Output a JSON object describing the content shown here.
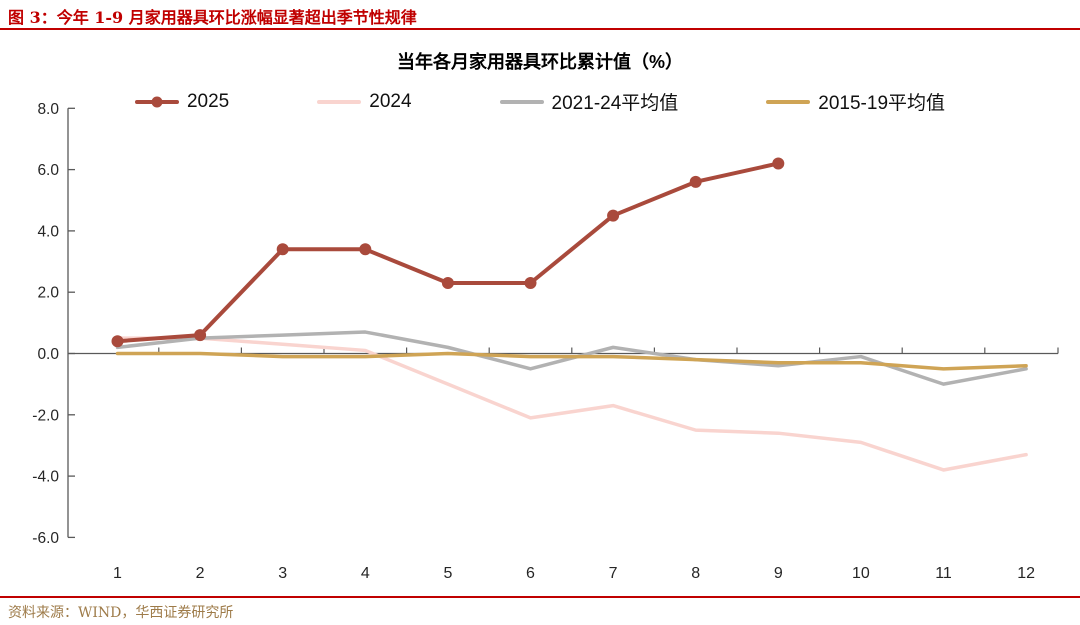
{
  "figure": {
    "caption": "图 3：今年 1-9 月家用器具环比涨幅显著超出季节性规律",
    "source": "资料来源：WIND，华西证券研究所"
  },
  "chart_data": {
    "type": "line",
    "title": "当年各月家用器具环比累计值（%）",
    "xlabel": "",
    "ylabel": "",
    "x_categories": [
      "1",
      "2",
      "3",
      "4",
      "5",
      "6",
      "7",
      "8",
      "9",
      "10",
      "11",
      "12"
    ],
    "ylim": [
      -6.0,
      8.0
    ],
    "yticks": [
      8.0,
      6.0,
      4.0,
      2.0,
      0.0,
      -2.0,
      -4.0,
      -6.0
    ],
    "ytick_labels": [
      "8.0",
      "6.0",
      "4.0",
      "2.0",
      "0.0",
      "-2.0",
      "-4.0",
      "-6.0"
    ],
    "grid": false,
    "legend_position": "top",
    "series": [
      {
        "name": "2025",
        "color": "#a94a3c",
        "marker": "circle",
        "values": [
          0.4,
          0.6,
          3.4,
          3.4,
          2.3,
          2.3,
          4.5,
          5.6,
          6.2
        ]
      },
      {
        "name": "2024",
        "color": "#f9d4cf",
        "marker": "none",
        "values": [
          0.5,
          0.5,
          0.3,
          0.1,
          -1.0,
          -2.1,
          -1.7,
          -2.5,
          -2.6,
          -2.9,
          -3.8,
          -3.3
        ]
      },
      {
        "name": "2021-24平均值",
        "color": "#b2b2b2",
        "marker": "none",
        "values": [
          0.2,
          0.5,
          0.6,
          0.7,
          0.2,
          -0.5,
          0.2,
          -0.2,
          -0.4,
          -0.1,
          -1.0,
          -0.5
        ]
      },
      {
        "name": "2015-19平均值",
        "color": "#cfa455",
        "marker": "none",
        "values": [
          0.0,
          0.0,
          -0.1,
          -0.1,
          0.0,
          -0.1,
          -0.1,
          -0.2,
          -0.3,
          -0.3,
          -0.5,
          -0.4
        ]
      }
    ]
  },
  "colors": {
    "caption_red": "#c00000",
    "rule_red": "#c00000",
    "series_2025": "#a94a3c",
    "series_2024": "#f9d4cf",
    "series_2021_24_avg": "#b2b2b2",
    "series_2015_19_avg": "#cfa455",
    "axis_line": "#595959",
    "tick_label": "#262626",
    "source_text": "#9e7b49"
  }
}
